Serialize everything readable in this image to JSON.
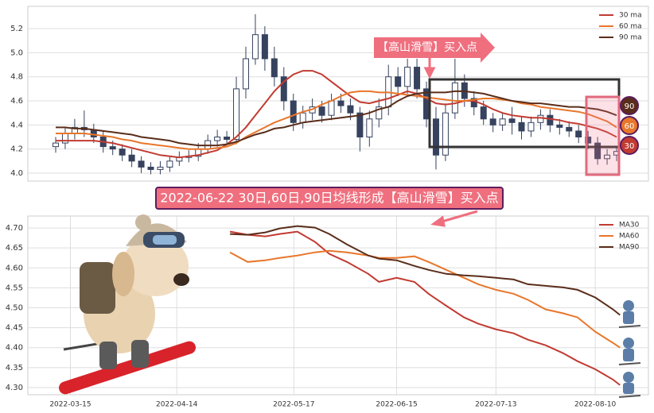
{
  "chart_data": [
    {
      "type": "candlestick",
      "color": "#36425e",
      "open": [
        4.22,
        4.25,
        4.33,
        4.38,
        4.36,
        4.3,
        4.22,
        4.2,
        4.15,
        4.1,
        4.05,
        4.03,
        4.05,
        4.1,
        4.13,
        4.14,
        4.2,
        4.27,
        4.3,
        4.28,
        4.7,
        4.95,
        5.15,
        4.95,
        4.8,
        4.6,
        4.42,
        4.5,
        4.55,
        4.48,
        4.6,
        4.56,
        4.5,
        4.3,
        4.45,
        4.55,
        4.8,
        4.72,
        4.88,
        4.7,
        4.45,
        4.15,
        4.5,
        4.75,
        4.62,
        4.55,
        4.45,
        4.4,
        4.45,
        4.42,
        4.35,
        4.42,
        4.48,
        4.4,
        4.38,
        4.35,
        4.3,
        4.25,
        4.12,
        4.15
      ],
      "high": [
        4.3,
        4.38,
        4.45,
        4.52,
        4.41,
        4.35,
        4.27,
        4.24,
        4.2,
        4.14,
        4.09,
        4.1,
        4.14,
        4.18,
        4.19,
        4.25,
        4.32,
        4.36,
        4.35,
        4.8,
        5.05,
        5.32,
        5.22,
        5.05,
        4.88,
        4.66,
        4.56,
        4.62,
        4.6,
        4.66,
        4.66,
        4.62,
        4.55,
        4.52,
        4.62,
        4.9,
        4.88,
        4.95,
        4.95,
        4.76,
        4.55,
        4.58,
        4.95,
        4.82,
        4.68,
        4.6,
        4.5,
        4.5,
        4.55,
        4.47,
        4.47,
        4.53,
        4.53,
        4.45,
        4.43,
        4.4,
        4.35,
        4.3,
        4.2,
        4.22
      ],
      "low": [
        4.17,
        4.2,
        4.28,
        4.3,
        4.25,
        4.17,
        4.15,
        4.1,
        4.05,
        4.0,
        3.99,
        3.99,
        4.01,
        4.06,
        4.09,
        4.1,
        4.16,
        4.22,
        4.23,
        4.24,
        4.62,
        4.9,
        4.85,
        4.72,
        4.52,
        4.35,
        4.37,
        4.44,
        4.42,
        4.44,
        4.5,
        4.44,
        4.18,
        4.22,
        4.38,
        4.48,
        4.64,
        4.66,
        4.62,
        4.38,
        4.03,
        4.1,
        4.45,
        4.55,
        4.48,
        4.4,
        4.34,
        4.35,
        4.32,
        4.28,
        4.3,
        4.36,
        4.34,
        4.32,
        4.3,
        4.25,
        4.2,
        4.07,
        4.07,
        4.1
      ],
      "close": [
        4.25,
        4.33,
        4.38,
        4.36,
        4.3,
        4.22,
        4.2,
        4.15,
        4.1,
        4.05,
        4.03,
        4.05,
        4.1,
        4.13,
        4.14,
        4.2,
        4.27,
        4.3,
        4.28,
        4.7,
        4.95,
        5.15,
        4.95,
        4.8,
        4.6,
        4.42,
        4.5,
        4.55,
        4.48,
        4.6,
        4.56,
        4.5,
        4.3,
        4.45,
        4.55,
        4.8,
        4.72,
        4.88,
        4.7,
        4.45,
        4.15,
        4.5,
        4.75,
        4.62,
        4.55,
        4.45,
        4.4,
        4.45,
        4.42,
        4.35,
        4.42,
        4.48,
        4.4,
        4.38,
        4.35,
        4.3,
        4.25,
        4.12,
        4.15,
        4.18
      ],
      "series": [
        {
          "name": "30 ma",
          "color": "#c23b32",
          "values": [
            4.27,
            4.27,
            4.27,
            4.27,
            4.27,
            4.26,
            4.25,
            4.23,
            4.21,
            4.19,
            4.17,
            4.15,
            4.14,
            4.13,
            4.14,
            4.15,
            4.17,
            4.19,
            4.24,
            4.3,
            4.38,
            4.48,
            4.58,
            4.68,
            4.76,
            4.82,
            4.85,
            4.85,
            4.82,
            4.76,
            4.7,
            4.64,
            4.59,
            4.58,
            4.6,
            4.62,
            4.65,
            4.68,
            4.66,
            4.62,
            4.58,
            4.57,
            4.58,
            4.6,
            4.6,
            4.57,
            4.53,
            4.5,
            4.48,
            4.47,
            4.46,
            4.46,
            4.45,
            4.44,
            4.42,
            4.41,
            4.39,
            4.37,
            4.34,
            4.3
          ]
        },
        {
          "name": "60 ma",
          "color": "#e8762b",
          "values": [
            4.33,
            4.33,
            4.33,
            4.33,
            4.32,
            4.31,
            4.3,
            4.28,
            4.27,
            4.25,
            4.24,
            4.23,
            4.22,
            4.21,
            4.2,
            4.2,
            4.2,
            4.21,
            4.22,
            4.25,
            4.3,
            4.34,
            4.38,
            4.42,
            4.45,
            4.48,
            4.51,
            4.53,
            4.57,
            4.6,
            4.64,
            4.67,
            4.68,
            4.68,
            4.67,
            4.67,
            4.66,
            4.65,
            4.64,
            4.63,
            4.62,
            4.61,
            4.6,
            4.6,
            4.61,
            4.62,
            4.62,
            4.61,
            4.6,
            4.58,
            4.57,
            4.55,
            4.54,
            4.53,
            4.52,
            4.51,
            4.49,
            4.46,
            4.43,
            4.38
          ]
        },
        {
          "name": "90 ma",
          "color": "#5a2d1a",
          "values": [
            4.38,
            4.38,
            4.37,
            4.37,
            4.36,
            4.35,
            4.34,
            4.33,
            4.32,
            4.3,
            4.29,
            4.28,
            4.27,
            4.25,
            4.24,
            4.23,
            4.23,
            4.23,
            4.24,
            4.26,
            4.29,
            4.32,
            4.34,
            4.37,
            4.38,
            4.4,
            4.42,
            4.43,
            4.44,
            4.45,
            4.46,
            4.47,
            4.48,
            4.5,
            4.53,
            4.55,
            4.6,
            4.64,
            4.66,
            4.67,
            4.67,
            4.67,
            4.68,
            4.68,
            4.67,
            4.66,
            4.64,
            4.62,
            4.6,
            4.59,
            4.58,
            4.58,
            4.57,
            4.56,
            4.55,
            4.55,
            4.54,
            4.53,
            4.51,
            4.48
          ]
        }
      ],
      "ylim": [
        3.934,
        5.385
      ],
      "yticks": [
        {
          "value": 4,
          "label": "4.0"
        },
        4.2,
        4.4,
        4.6,
        4.8,
        {
          "value": 5,
          "label": "5.0"
        },
        5.2
      ],
      "grid": true,
      "legend": "upper right",
      "annotation": "【高山滑雪】买入点",
      "badges": [
        {
          "label": "90",
          "color": "#5a2d1a"
        },
        {
          "label": "60",
          "color": "#e8762b"
        },
        {
          "label": "30",
          "color": "#c23b32"
        }
      ]
    },
    {
      "type": "line",
      "x": [
        "2022-04-29",
        "2022-05-04",
        "2022-05-09",
        "2022-05-13",
        "2022-05-18",
        "2022-05-23",
        "2022-05-27",
        "2022-06-01",
        "2022-06-07",
        "2022-06-10",
        "2022-06-15",
        "2022-06-20",
        "2022-06-24",
        "2022-06-29",
        "2022-07-04",
        "2022-07-08",
        "2022-07-13",
        "2022-07-18",
        "2022-07-22",
        "2022-07-27",
        "2022-08-01",
        "2022-08-05",
        "2022-08-10",
        "2022-08-15",
        "2022-08-17"
      ],
      "series": [
        {
          "name": "MA30",
          "color": "#c23b32",
          "values": [
            4.691,
            4.683,
            4.679,
            4.685,
            4.691,
            4.665,
            4.635,
            4.615,
            4.585,
            4.565,
            4.575,
            4.565,
            4.535,
            4.505,
            4.476,
            4.46,
            4.446,
            4.436,
            4.42,
            4.406,
            4.386,
            4.366,
            4.346,
            4.32,
            4.306
          ]
        },
        {
          "name": "MA60",
          "color": "#e8762b",
          "values": [
            4.639,
            4.615,
            4.619,
            4.625,
            4.631,
            4.639,
            4.643,
            4.639,
            4.631,
            4.625,
            4.625,
            4.629,
            4.615,
            4.595,
            4.575,
            4.559,
            4.545,
            4.535,
            4.52,
            4.496,
            4.486,
            4.476,
            4.44,
            4.412,
            4.4
          ]
        },
        {
          "name": "MA90",
          "color": "#5a2d1a",
          "values": [
            4.685,
            4.683,
            4.689,
            4.699,
            4.705,
            4.701,
            4.685,
            4.659,
            4.631,
            4.623,
            4.619,
            4.605,
            4.595,
            4.585,
            4.581,
            4.579,
            4.575,
            4.571,
            4.559,
            4.555,
            4.551,
            4.545,
            4.526,
            4.496,
            4.482
          ]
        }
      ],
      "xlim": [
        "2022-03-03",
        "2022-08-25"
      ],
      "xticks": [
        "2022-03-15",
        "2022-04-14",
        "2022-05-17",
        "2022-06-15",
        "2022-07-13",
        "2022-08-10"
      ],
      "ylim": [
        4.282,
        4.73
      ],
      "yticks": [
        {
          "value": 4.3,
          "label": "4.30"
        },
        {
          "value": 4.35,
          "label": "4.35"
        },
        {
          "value": 4.4,
          "label": "4.40"
        },
        {
          "value": 4.45,
          "label": "4.45"
        },
        {
          "value": 4.5,
          "label": "4.50"
        },
        {
          "value": 4.55,
          "label": "4.55"
        },
        {
          "value": 4.6,
          "label": "4.60"
        },
        {
          "value": 4.65,
          "label": "4.65"
        },
        {
          "value": 4.7,
          "label": "4.70"
        }
      ],
      "grid": true,
      "legend": "upper right"
    }
  ],
  "banner": "2022-06-22 30日,60日,90日均线形成【高山滑雪】买入点"
}
